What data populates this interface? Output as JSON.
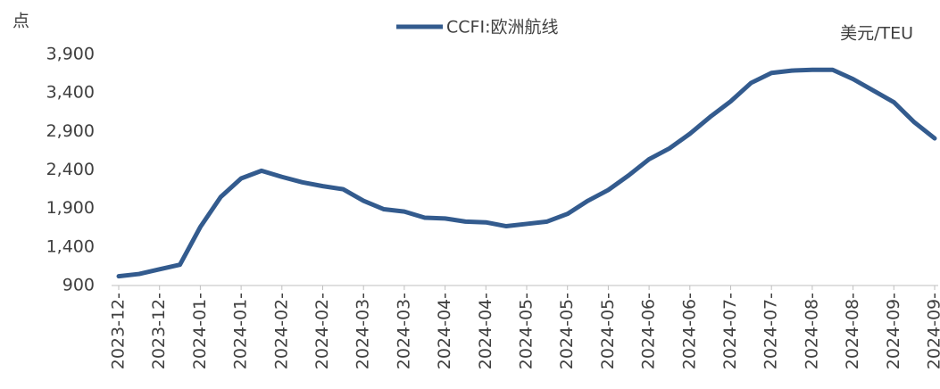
{
  "chart_data": {
    "type": "line",
    "y_unit_left": "点",
    "y_unit_right": "美元/TEU",
    "categories": [
      "2023-12-",
      null,
      "2023-12-",
      null,
      "2024-01-",
      null,
      "2024-01-",
      null,
      "2024-02-",
      null,
      "2024-02-",
      null,
      "2024-03-",
      null,
      "2024-03-",
      null,
      "2024-04-",
      null,
      "2024-04-",
      null,
      "2024-05-",
      null,
      "2024-05-",
      null,
      "2024-05-",
      null,
      "2024-06-",
      null,
      "2024-06-",
      null,
      "2024-07-",
      null,
      "2024-07-",
      null,
      "2024-08-",
      null,
      "2024-08-",
      null,
      "2024-09-",
      null,
      "2024-09-"
    ],
    "series": [
      {
        "name": "CCFI:欧洲航线",
        "color": "#335b8e",
        "values": [
          1020,
          1050,
          1110,
          1170,
          1660,
          2050,
          2290,
          2390,
          2310,
          2240,
          2190,
          2150,
          2000,
          1890,
          1860,
          1780,
          1770,
          1730,
          1720,
          1670,
          1700,
          1730,
          1830,
          2000,
          2140,
          2330,
          2540,
          2680,
          2870,
          3090,
          3290,
          3530,
          3660,
          3690,
          3700,
          3700,
          3580,
          3430,
          3280,
          3020,
          2810
        ]
      }
    ],
    "ylim": [
      900,
      3900
    ],
    "yticks": [
      900,
      {
        "value": 1400,
        "label": "1,400"
      },
      {
        "value": 1900,
        "label": "1,900"
      },
      {
        "value": 2400,
        "label": "2,400"
      },
      {
        "value": 2900,
        "label": "2,900"
      },
      {
        "value": 3400,
        "label": "3,400"
      },
      {
        "value": 3900,
        "label": "3,900"
      }
    ],
    "grid": false
  }
}
